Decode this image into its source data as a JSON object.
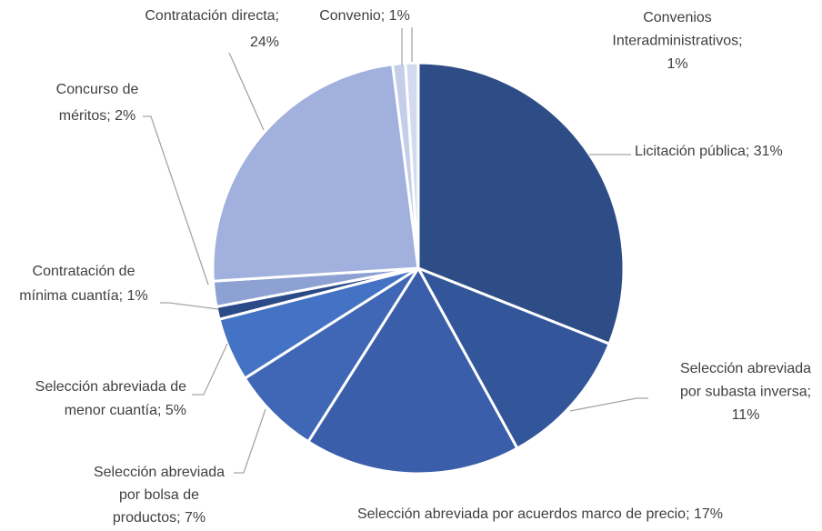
{
  "chart_data": {
    "type": "pie",
    "values": [
      31,
      11,
      17,
      7,
      5,
      1,
      2,
      24,
      1,
      1
    ],
    "value_labels": [
      [
        "Licitación pública; 31%"
      ],
      [
        "Selección abreviada",
        "por subasta inversa;",
        "11%"
      ],
      [
        "Selección abreviada por acuerdos marco de precio; 17%"
      ],
      [
        "Selección abreviada",
        "por bolsa de",
        "productos; 7%"
      ],
      [
        "Selección abreviada de",
        "menor cuantía; 5%"
      ],
      [
        "Contratación de",
        "mínima cuantía; 1%"
      ],
      [
        "Concurso de",
        "méritos; 2%"
      ],
      [
        "Contratación directa;",
        "24%"
      ],
      [
        "Convenio; 1%"
      ],
      [
        "Convenios",
        "Interadministrativos;",
        "1%"
      ]
    ],
    "colors": [
      "#2e4d87",
      "#33569b",
      "#3a5ea9",
      "#3f67b6",
      "#4472c4",
      "#2b4a88",
      "#8ea1d3",
      "#a1b0dc",
      "#c4cee9",
      "#d3daef"
    ]
  }
}
